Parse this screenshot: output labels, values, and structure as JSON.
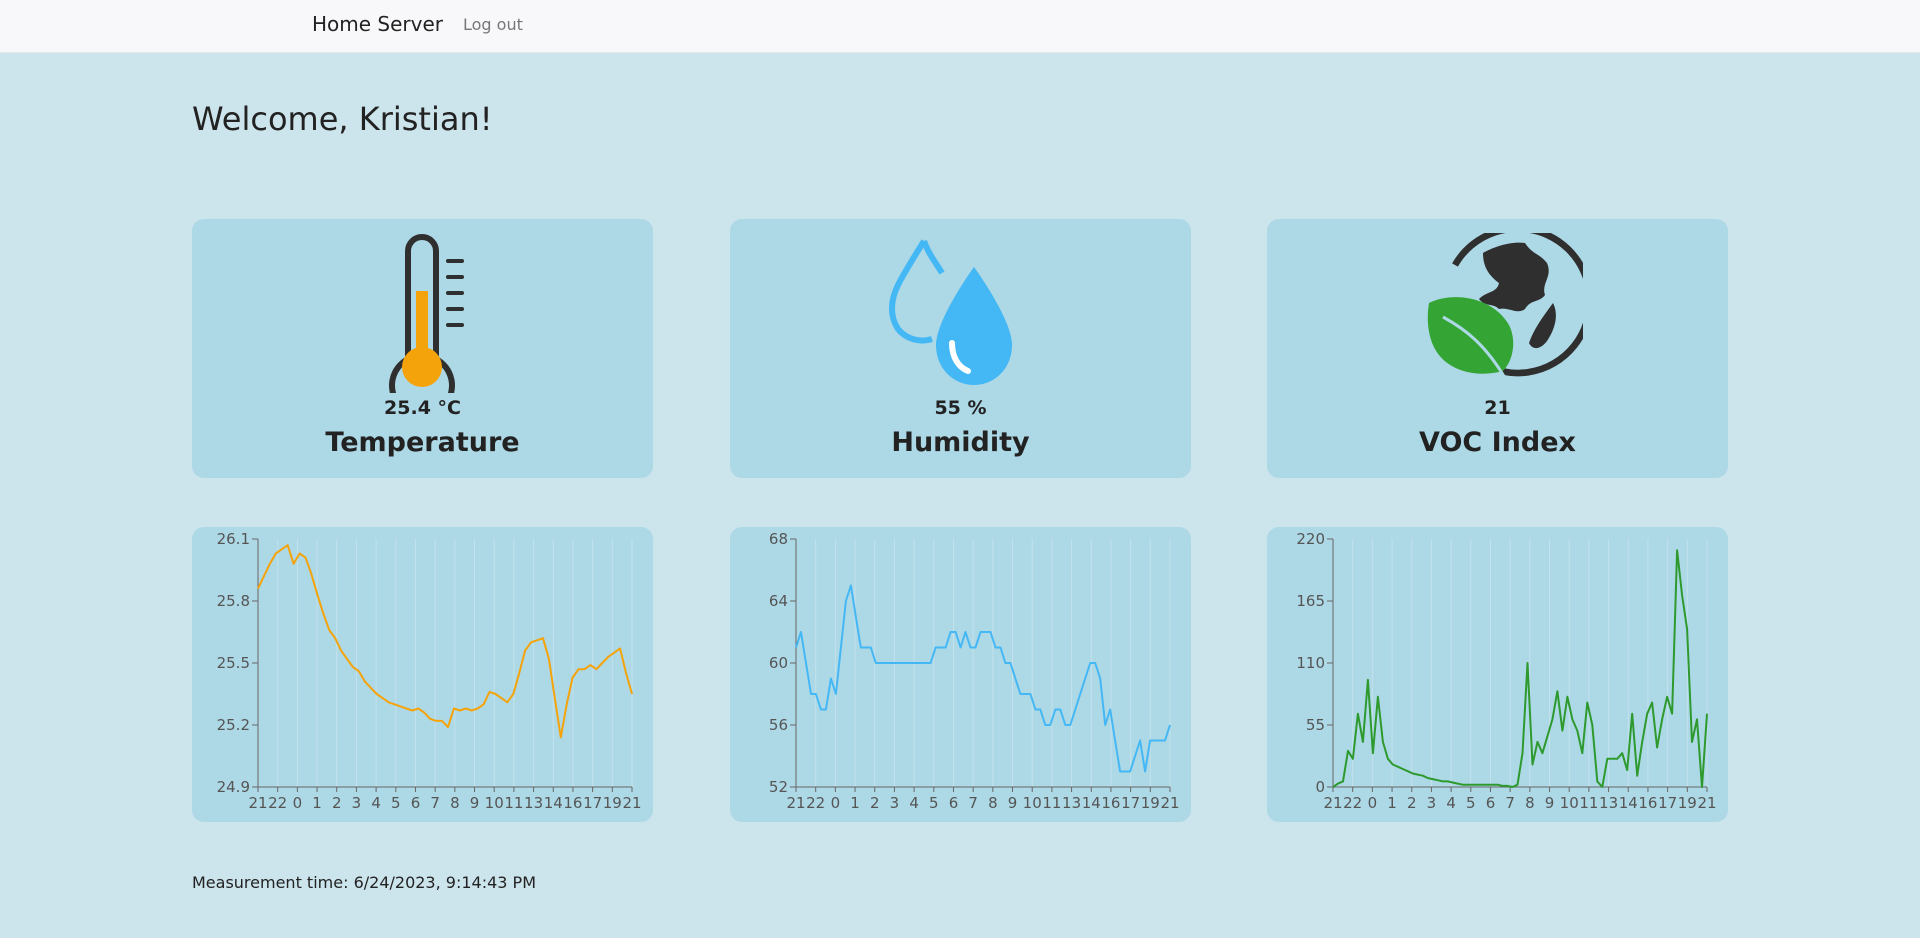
{
  "nav": {
    "brand": "Home Server",
    "logout": "Log out"
  },
  "welcome": "Welcome, Kristian!",
  "colors": {
    "temperature": "#f5a30a",
    "humidity": "#44b7f5",
    "voc": "#2e9a2e",
    "icon_dark": "#2f2f2f",
    "card_bg": "#add8e6",
    "page_bg": "#cce4ec"
  },
  "cards": [
    {
      "id": "temperature",
      "icon": "thermometer-icon",
      "value": "25.4 °C",
      "label": "Temperature"
    },
    {
      "id": "humidity",
      "icon": "water-drops-icon",
      "value": "55 %",
      "label": "Humidity"
    },
    {
      "id": "voc",
      "icon": "earth-leaf-icon",
      "value": "21",
      "label": "VOC Index"
    }
  ],
  "chart_data": [
    {
      "type": "line",
      "name": "temperature",
      "x_labels": [
        "21",
        "22",
        "0",
        "1",
        "2",
        "3",
        "4",
        "5",
        "6",
        "7",
        "8",
        "9",
        "10",
        "11",
        "13",
        "14",
        "16",
        "17",
        "19",
        "21"
      ],
      "yticks": [
        "26.1",
        "25.8",
        "25.5",
        "25.2",
        "24.9"
      ],
      "ylim": [
        24.9,
        26.1
      ],
      "grid": true,
      "y": [
        25.86,
        25.92,
        25.98,
        26.03,
        26.05,
        26.07,
        25.98,
        26.03,
        26.01,
        25.93,
        25.83,
        25.74,
        25.66,
        25.62,
        25.56,
        25.52,
        25.48,
        25.46,
        25.41,
        25.38,
        25.35,
        25.33,
        25.31,
        25.3,
        25.29,
        25.28,
        25.27,
        25.28,
        25.26,
        25.23,
        25.22,
        25.22,
        25.19,
        25.28,
        25.27,
        25.28,
        25.27,
        25.28,
        25.3,
        25.36,
        25.35,
        25.33,
        25.31,
        25.35,
        25.45,
        25.56,
        25.6,
        25.61,
        25.62,
        25.52,
        25.33,
        25.14,
        25.3,
        25.43,
        25.47,
        25.47,
        25.49,
        25.47,
        25.5,
        25.53,
        25.55,
        25.57,
        25.45,
        25.35
      ]
    },
    {
      "type": "line",
      "name": "humidity",
      "x_labels": [
        "21",
        "22",
        "0",
        "1",
        "2",
        "3",
        "4",
        "5",
        "6",
        "7",
        "8",
        "9",
        "10",
        "11",
        "13",
        "14",
        "16",
        "17",
        "19",
        "21"
      ],
      "yticks": [
        "68",
        "64",
        "60",
        "56",
        "52"
      ],
      "ylim": [
        52,
        68
      ],
      "grid": true,
      "y": [
        61,
        62,
        60,
        58,
        58,
        57,
        57,
        59,
        58,
        61,
        64,
        65,
        63,
        61,
        61,
        61,
        60,
        60,
        60,
        60,
        60,
        60,
        60,
        60,
        60,
        60,
        60,
        60,
        61,
        61,
        61,
        62,
        62,
        61,
        62,
        61,
        61,
        62,
        62,
        62,
        61,
        61,
        60,
        60,
        59,
        58,
        58,
        58,
        57,
        57,
        56,
        56,
        57,
        57,
        56,
        56,
        57,
        58,
        59,
        60,
        60,
        59,
        56,
        57,
        55,
        53,
        53,
        53,
        54,
        55,
        53,
        55,
        55,
        55,
        55,
        56
      ]
    },
    {
      "type": "line",
      "name": "voc",
      "x_labels": [
        "21",
        "22",
        "0",
        "1",
        "2",
        "3",
        "4",
        "5",
        "6",
        "7",
        "8",
        "9",
        "10",
        "11",
        "13",
        "14",
        "16",
        "17",
        "19",
        "21"
      ],
      "yticks": [
        "220",
        "165",
        "110",
        "55",
        "0"
      ],
      "ylim": [
        0,
        220
      ],
      "grid": true,
      "y": [
        0,
        3,
        5,
        32,
        25,
        65,
        40,
        95,
        30,
        80,
        40,
        25,
        20,
        18,
        16,
        14,
        12,
        11,
        10,
        8,
        7,
        6,
        5,
        5,
        4,
        3,
        2,
        2,
        2,
        2,
        2,
        2,
        2,
        2,
        1,
        1,
        0,
        2,
        30,
        110,
        20,
        40,
        30,
        45,
        60,
        85,
        50,
        80,
        60,
        50,
        30,
        75,
        55,
        5,
        0,
        25,
        25,
        25,
        30,
        15,
        65,
        10,
        40,
        65,
        75,
        35,
        60,
        80,
        65,
        210,
        170,
        140,
        40,
        60,
        0,
        65
      ]
    }
  ],
  "measurement": {
    "label": "Measurement time:",
    "time": "6/24/2023, 9:14:43 PM"
  }
}
